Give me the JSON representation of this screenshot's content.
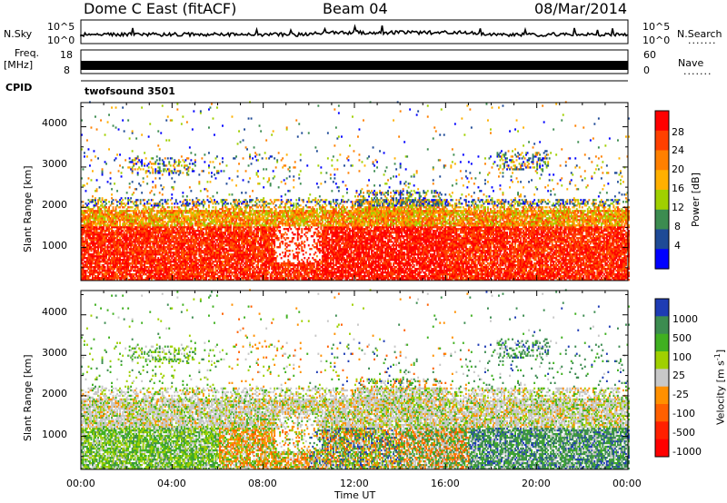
{
  "header": {
    "station": "Dome C East (fitACF)",
    "beam": "Beam 04",
    "date": "08/Mar/2014"
  },
  "strip": {
    "nsky_label": "N.Sky",
    "nsky_ticks": [
      "10^5",
      "10^0"
    ],
    "nsearch_label": "N.Search",
    "nsearch_ticks": [
      "10^5",
      "10^0"
    ],
    "freq_label_1": "Freq.",
    "freq_label_2": "[MHz]",
    "freq_ticks": [
      "18",
      "8"
    ],
    "nave_label": "Nave",
    "nave_ticks": [
      "60",
      "0"
    ],
    "cpid_label": "CPID",
    "cpid_value": "twofsound 3501",
    "dots": "......."
  },
  "axes": {
    "ylabel": "Slant Range [km]",
    "xlabel": "Time UT",
    "x_ticks": [
      "00:00",
      "04:00",
      "08:00",
      "12:00",
      "16:00",
      "20:00",
      "00:00"
    ],
    "y_ticks": [
      "1000",
      "2000",
      "3000",
      "4000"
    ]
  },
  "power_scale": {
    "label": "Power [dB]",
    "ticks": [
      "28",
      "24",
      "20",
      "16",
      "12",
      "8",
      "4"
    ],
    "colors": [
      "#ff0000",
      "#ff4000",
      "#ff8000",
      "#ffb000",
      "#a0d000",
      "#3c8c50",
      "#1e4a96",
      "#0000ff"
    ]
  },
  "velocity_scale": {
    "label": "Velocity [m s",
    "label_sup": "-1",
    "label_end": "]",
    "ticks": [
      "1000",
      "500",
      "100",
      "25",
      "-25",
      "-100",
      "-500",
      "-1000"
    ],
    "colors": [
      "#1e3cb4",
      "#3c8c50",
      "#40b020",
      "#a0d000",
      "#c8c8c8",
      "#ff9000",
      "#ff6000",
      "#ff2000",
      "#ff0000"
    ]
  },
  "chart_data": [
    {
      "type": "heatmap",
      "title": "Beam 04",
      "xlabel": "Time UT",
      "ylabel": "Slant Range [km]",
      "xlim": [
        "00:00",
        "24:00"
      ],
      "ylim": [
        180,
        4600
      ],
      "colorbar": "Power [dB]",
      "colorbar_range": [
        0,
        30
      ]
    },
    {
      "type": "heatmap",
      "title": "Beam 04",
      "xlabel": "Time UT",
      "ylabel": "Slant Range [km]",
      "xlim": [
        "00:00",
        "24:00"
      ],
      "ylim": [
        180,
        4600
      ],
      "colorbar": "Velocity [m s-1]",
      "colorbar_range": [
        -1000,
        1000
      ]
    }
  ]
}
